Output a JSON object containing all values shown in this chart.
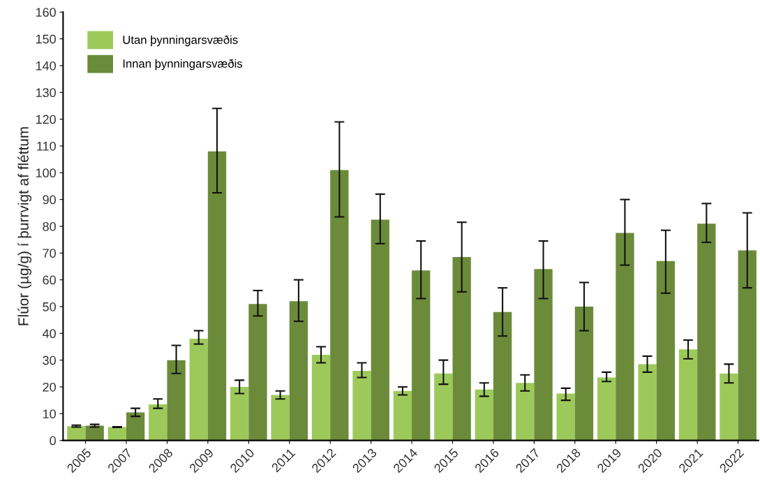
{
  "chart_data": {
    "type": "bar",
    "ylabel": "Flúor (µg/g) í þurrvigt af fléttum",
    "categories": [
      "2005",
      "2007",
      "2008",
      "2009",
      "2010",
      "2011",
      "2012",
      "2013",
      "2014",
      "2015",
      "2016",
      "2017",
      "2018",
      "2019",
      "2020",
      "2021",
      "2022"
    ],
    "series": [
      {
        "name": "Utan þynningarsvæðis",
        "color": "#9dc95a",
        "values": [
          5.3,
          5,
          13.5,
          38,
          20,
          17,
          32,
          26,
          18.5,
          25,
          19,
          21.5,
          17.5,
          23.5,
          28.5,
          34,
          25
        ],
        "errors": [
          [
            5,
            5.7
          ],
          [
            4.9,
            5.1
          ],
          [
            12,
            15.5
          ],
          [
            36,
            41
          ],
          [
            17.5,
            22.5
          ],
          [
            15.5,
            18.5
          ],
          [
            29,
            35
          ],
          [
            23.5,
            29
          ],
          [
            17,
            20
          ],
          [
            21,
            30
          ],
          [
            16.5,
            21.5
          ],
          [
            18.5,
            24.5
          ],
          [
            15,
            19.5
          ],
          [
            22,
            25.5
          ],
          [
            25.5,
            31.5
          ],
          [
            30.5,
            37.5
          ],
          [
            21.5,
            28.5
          ]
        ]
      },
      {
        "name": "Innan þynningarsvæðis",
        "color": "#6b8b3a",
        "values": [
          5.5,
          10.5,
          30,
          108,
          51,
          52,
          101,
          82.5,
          63.5,
          68.5,
          48,
          64,
          50,
          77.5,
          67,
          81,
          71
        ],
        "errors": [
          [
            5,
            6
          ],
          [
            9,
            12
          ],
          [
            25,
            35.5
          ],
          [
            92.5,
            124
          ],
          [
            46.5,
            56
          ],
          [
            44.5,
            60
          ],
          [
            83.5,
            119
          ],
          [
            73.5,
            92
          ],
          [
            53,
            74.5
          ],
          [
            55.5,
            81.5
          ],
          [
            39,
            57
          ],
          [
            53,
            74.5
          ],
          [
            41,
            59
          ],
          [
            65.5,
            90
          ],
          [
            55,
            78.5
          ],
          [
            74,
            88.5
          ],
          [
            57,
            85
          ]
        ]
      }
    ],
    "ylim": [
      0,
      160
    ],
    "yticks": [
      0,
      10,
      20,
      30,
      40,
      50,
      60,
      70,
      80,
      90,
      100,
      110,
      120,
      130,
      140,
      150,
      160
    ],
    "grid": false,
    "legend": "top left"
  }
}
